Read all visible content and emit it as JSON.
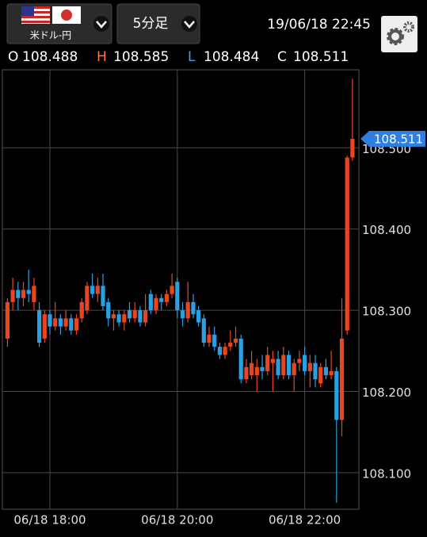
{
  "header": {
    "pair": "米ドル-円",
    "timeframe": "5分足",
    "datetime": "19/06/18 22:45",
    "ohlc": [
      {
        "label": "O",
        "value": 108.488
      },
      {
        "label": "H",
        "value": 108.585
      },
      {
        "label": "L",
        "value": 108.484
      },
      {
        "label": "C",
        "value": 108.511
      }
    ]
  },
  "chart_data": {
    "type": "candlestick",
    "categories": [
      null,
      null,
      null,
      null,
      null,
      null,
      null,
      null,
      "06/18 18:00",
      null,
      null,
      null,
      null,
      null,
      null,
      null,
      null,
      null,
      null,
      null,
      null,
      null,
      null,
      null,
      null,
      null,
      null,
      null,
      null,
      null,
      null,
      null,
      "06/18 20:00",
      null,
      null,
      null,
      null,
      null,
      null,
      null,
      null,
      null,
      null,
      null,
      null,
      null,
      null,
      null,
      null,
      null,
      null,
      null,
      null,
      null,
      null,
      null,
      "06/18 22:00",
      null,
      null,
      null,
      null,
      null,
      null,
      null,
      null,
      null
    ],
    "open": [
      108.265,
      108.31,
      108.325,
      108.315,
      108.325,
      108.31,
      108.3,
      108.265,
      108.295,
      108.28,
      108.29,
      108.28,
      108.29,
      108.275,
      108.29,
      108.3,
      108.33,
      108.32,
      108.33,
      108.31,
      108.29,
      108.295,
      108.285,
      108.3,
      108.29,
      108.3,
      108.285,
      108.32,
      108.3,
      108.315,
      108.31,
      108.32,
      108.335,
      108.3,
      108.29,
      108.31,
      108.3,
      108.29,
      108.26,
      108.27,
      108.255,
      108.245,
      108.255,
      108.26,
      108.265,
      108.215,
      108.22,
      108.22,
      108.23,
      108.225,
      108.235,
      108.24,
      108.22,
      108.245,
      108.22,
      108.235,
      108.245,
      108.225,
      108.235,
      108.21,
      108.23,
      108.22,
      108.225,
      108.165,
      108.275,
      108.488
    ],
    "high": [
      108.315,
      108.34,
      108.335,
      108.335,
      108.35,
      108.34,
      108.31,
      108.3,
      108.3,
      108.31,
      108.295,
      108.3,
      108.295,
      108.295,
      108.315,
      108.335,
      108.345,
      108.34,
      108.345,
      108.315,
      108.3,
      108.3,
      108.3,
      108.31,
      108.31,
      108.305,
      108.32,
      108.325,
      108.32,
      108.32,
      108.325,
      108.345,
      108.34,
      108.31,
      108.335,
      108.32,
      108.305,
      108.295,
      108.28,
      108.28,
      108.26,
      108.26,
      108.275,
      108.28,
      108.27,
      108.24,
      108.25,
      108.24,
      108.245,
      108.255,
      108.25,
      108.25,
      108.255,
      108.25,
      108.24,
      108.25,
      108.255,
      108.245,
      108.245,
      108.235,
      108.24,
      108.25,
      108.23,
      108.315,
      108.49,
      108.585
    ],
    "low": [
      108.255,
      108.3,
      108.3,
      108.305,
      108.31,
      108.3,
      108.255,
      108.26,
      108.27,
      108.275,
      108.27,
      108.275,
      108.27,
      108.27,
      108.285,
      108.295,
      108.315,
      108.31,
      108.3,
      108.28,
      108.275,
      108.28,
      108.275,
      108.285,
      108.285,
      108.28,
      108.28,
      108.295,
      108.295,
      108.3,
      108.305,
      108.315,
      108.29,
      108.28,
      108.285,
      108.29,
      108.28,
      108.255,
      108.255,
      108.25,
      108.24,
      108.24,
      108.25,
      108.255,
      108.21,
      108.21,
      108.215,
      108.2,
      108.215,
      108.22,
      108.2,
      108.215,
      108.215,
      108.215,
      108.2,
      108.225,
      108.22,
      108.205,
      108.205,
      108.205,
      108.215,
      108.215,
      108.063,
      108.145,
      108.27,
      108.484
    ],
    "close": [
      108.31,
      108.325,
      108.315,
      108.325,
      108.32,
      108.33,
      108.26,
      108.295,
      108.28,
      108.29,
      108.28,
      108.29,
      108.275,
      108.29,
      108.31,
      108.33,
      108.32,
      108.33,
      108.305,
      108.29,
      108.295,
      108.285,
      108.295,
      108.29,
      108.3,
      108.285,
      108.3,
      108.3,
      108.315,
      108.31,
      108.32,
      108.33,
      108.3,
      108.29,
      108.31,
      108.295,
      108.285,
      108.26,
      108.27,
      108.255,
      108.245,
      108.255,
      108.26,
      108.265,
      108.215,
      108.23,
      108.235,
      108.23,
      108.225,
      108.245,
      108.24,
      108.22,
      108.245,
      108.22,
      108.235,
      108.24,
      108.225,
      108.235,
      108.215,
      108.23,
      108.22,
      108.225,
      108.165,
      108.265,
      108.488,
      108.511
    ],
    "up_color": "#e8461e",
    "down_color": "#2a9fe2",
    "ylim": [
      108.055,
      108.596
    ],
    "yticks": [
      {
        "value": 108.1,
        "label": "108.100"
      },
      {
        "value": 108.2,
        "label": "108.200"
      },
      {
        "value": 108.3,
        "label": "108.300"
      },
      {
        "value": 108.4,
        "label": "108.400"
      },
      {
        "value": 108.5,
        "label": "108.500"
      }
    ],
    "grid": true,
    "current_price": 108.511
  }
}
